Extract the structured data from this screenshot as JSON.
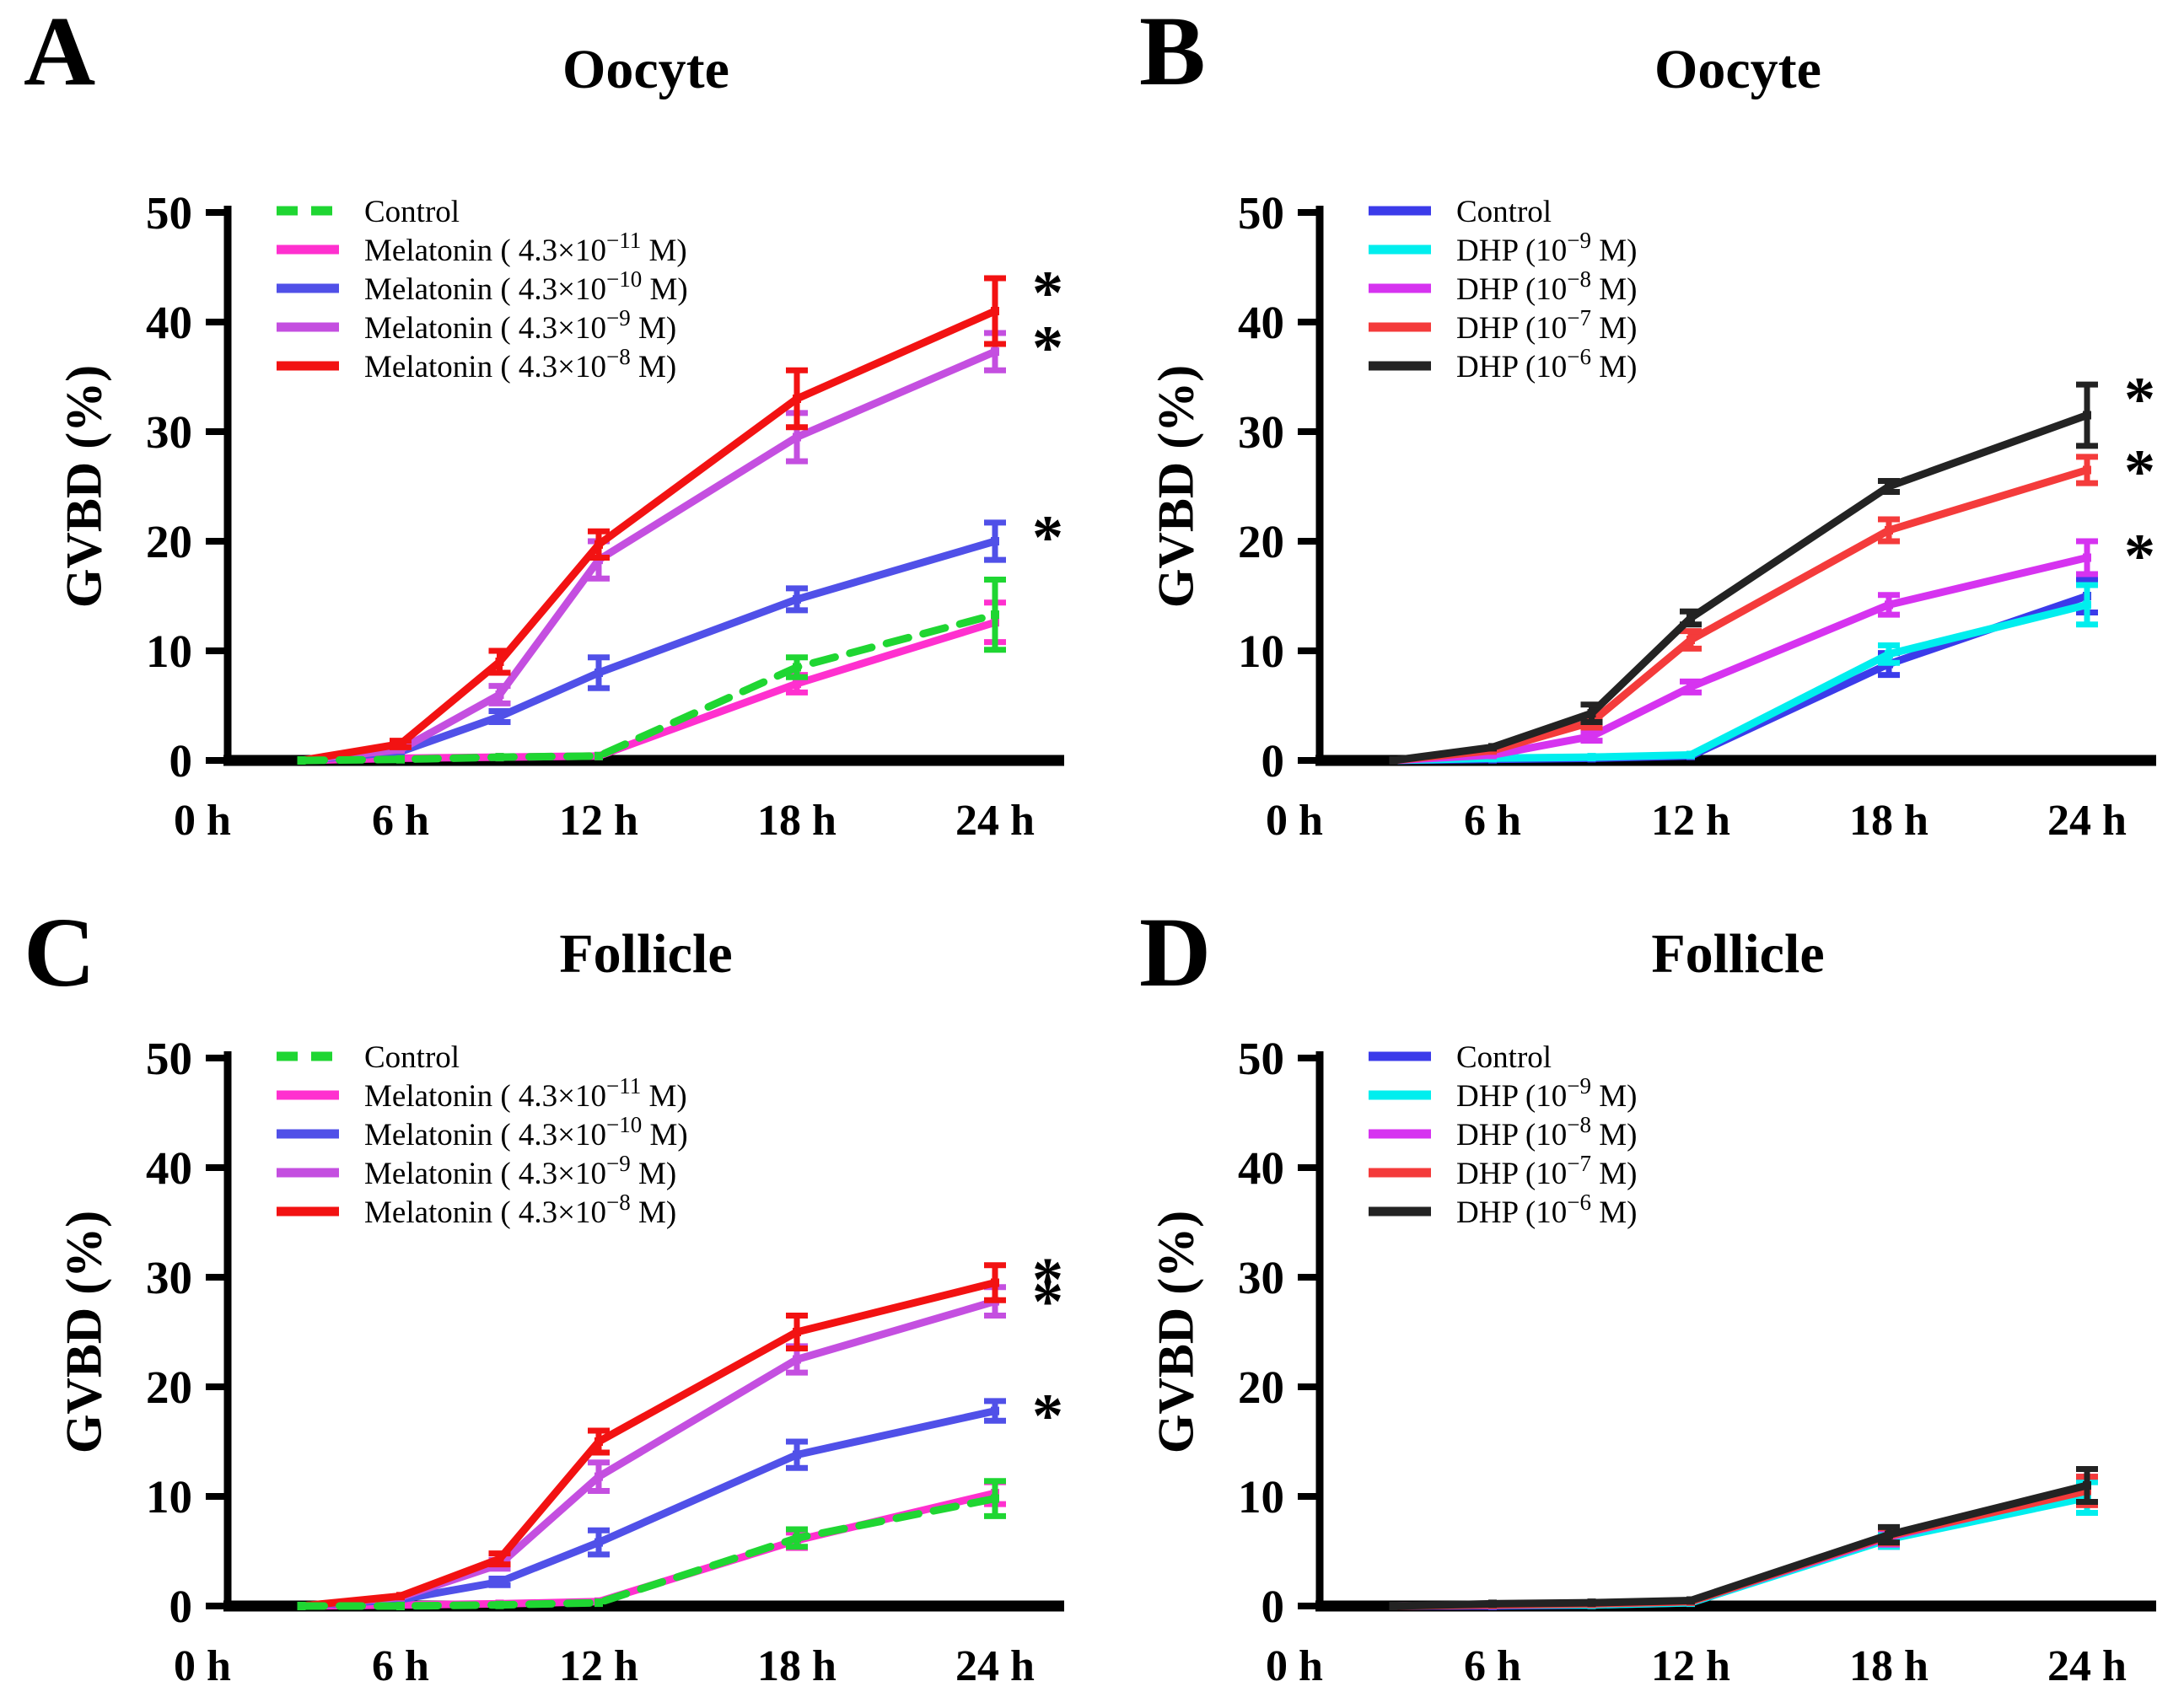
{
  "figure": {
    "background": "#ffffff",
    "axis_color": "#000000"
  },
  "chart_data": [
    {
      "letter": "A",
      "title": "Oocyte",
      "ylabel": "GVBD (%)",
      "type": "line",
      "ylim": [
        0,
        50
      ],
      "yticks": [
        0,
        10,
        20,
        30,
        40,
        50
      ],
      "xticks": [
        {
          "t": 0,
          "label": "0 h"
        },
        {
          "t": 6,
          "label": "6 h"
        },
        {
          "t": 12,
          "label": "12 h"
        },
        {
          "t": 18,
          "label": "18 h"
        },
        {
          "t": 24,
          "label": "24 h"
        }
      ],
      "x_hours": [
        3,
        6,
        9,
        12,
        18,
        24
      ],
      "legend_position": "top-left-inside",
      "series": [
        {
          "name": "Control",
          "label_pre": "Control",
          "label_sup": "",
          "label_post": "",
          "color": "#1fd632",
          "dashed": true,
          "significant": false,
          "values": [
            0,
            0.1,
            0.3,
            0.4,
            8.5,
            13.3
          ],
          "errors": [
            0,
            0,
            0,
            0,
            0.9,
            3.2
          ]
        },
        {
          "name": "Melatonin 4.3x10-11 M",
          "label_pre": "Melatonin ( 4.3×10",
          "label_sup": "−11",
          "label_post": " M)",
          "color": "#ff30cf",
          "dashed": false,
          "significant": false,
          "values": [
            0,
            0.2,
            0.3,
            0.4,
            7.0,
            12.6
          ],
          "errors": [
            0,
            0,
            0,
            0,
            0.8,
            1.8
          ]
        },
        {
          "name": "Melatonin 4.3x10-10 M",
          "label_pre": "Melatonin ( 4.3×10",
          "label_sup": "−10",
          "label_post": " M)",
          "color": "#5050e8",
          "dashed": false,
          "significant": true,
          "values": [
            0,
            0.8,
            4.0,
            8.0,
            14.7,
            20.0
          ],
          "errors": [
            0,
            0,
            0.5,
            1.4,
            1.0,
            1.7
          ]
        },
        {
          "name": "Melatonin 4.3x10-9 M",
          "label_pre": "Melatonin ( 4.3×10",
          "label_sup": "−9",
          "label_post": " M)",
          "color": "#c44fe0",
          "dashed": false,
          "significant": true,
          "values": [
            0,
            1.0,
            6.0,
            18.3,
            29.5,
            37.3
          ],
          "errors": [
            0,
            0,
            0.8,
            1.7,
            2.2,
            1.7
          ]
        },
        {
          "name": "Melatonin 4.3x10-8 M",
          "label_pre": "Melatonin ( 4.3×10",
          "label_sup": "−8",
          "label_post": " M)",
          "color": "#f21212",
          "dashed": false,
          "significant": true,
          "values": [
            0,
            1.5,
            9.0,
            19.7,
            33.0,
            41.0
          ],
          "errors": [
            0,
            0.3,
            1.0,
            1.2,
            2.6,
            3.0
          ]
        }
      ]
    },
    {
      "letter": "B",
      "title": "Oocyte",
      "ylabel": "GVBD (%)",
      "type": "line",
      "ylim": [
        0,
        50
      ],
      "yticks": [
        0,
        10,
        20,
        30,
        40,
        50
      ],
      "xticks": [
        {
          "t": 0,
          "label": "0 h"
        },
        {
          "t": 6,
          "label": "6 h"
        },
        {
          "t": 12,
          "label": "12 h"
        },
        {
          "t": 18,
          "label": "18 h"
        },
        {
          "t": 24,
          "label": "24 h"
        }
      ],
      "x_hours": [
        3,
        6,
        9,
        12,
        18,
        24
      ],
      "legend_position": "top-left-inside",
      "series": [
        {
          "name": "Control",
          "label_pre": "Control",
          "label_sup": "",
          "label_post": "",
          "color": "#3b3bea",
          "dashed": false,
          "significant": false,
          "values": [
            0,
            0.1,
            0.2,
            0.4,
            8.8,
            15.0
          ],
          "errors": [
            0,
            0,
            0,
            0,
            1.0,
            1.5
          ]
        },
        {
          "name": "DHP 10-9 M",
          "label_pre": "DHP (10",
          "label_sup": "−9",
          "label_post": " M)",
          "color": "#00eeee",
          "dashed": false,
          "significant": false,
          "values": [
            0,
            0.2,
            0.3,
            0.5,
            9.7,
            14.2
          ],
          "errors": [
            0,
            0,
            0,
            0,
            0.8,
            1.8
          ]
        },
        {
          "name": "DHP 10-8 M",
          "label_pre": "DHP (10",
          "label_sup": "−8",
          "label_post": " M)",
          "color": "#d633f0",
          "dashed": false,
          "significant": true,
          "values": [
            0,
            0.5,
            2.2,
            6.7,
            14.2,
            18.5
          ],
          "errors": [
            0,
            0,
            0.4,
            0.5,
            0.9,
            1.5
          ]
        },
        {
          "name": "DHP 10-7 M",
          "label_pre": "DHP (10",
          "label_sup": "−7",
          "label_post": " M)",
          "color": "#f43b3b",
          "dashed": false,
          "significant": true,
          "values": [
            0,
            0.9,
            3.5,
            11.0,
            21.0,
            26.5
          ],
          "errors": [
            0,
            0,
            0.5,
            0.8,
            1.0,
            1.2
          ]
        },
        {
          "name": "DHP 10-6 M",
          "label_pre": "DHP (10",
          "label_sup": "−6",
          "label_post": " M)",
          "color": "#232323",
          "dashed": false,
          "significant": true,
          "values": [
            0,
            1.2,
            4.3,
            13.0,
            25.0,
            31.5
          ],
          "errors": [
            0,
            0,
            0.8,
            0.6,
            0.5,
            2.8
          ]
        }
      ]
    },
    {
      "letter": "C",
      "title": "Follicle",
      "ylabel": "GVBD (%)",
      "type": "line",
      "ylim": [
        0,
        50
      ],
      "yticks": [
        0,
        10,
        20,
        30,
        40,
        50
      ],
      "xticks": [
        {
          "t": 0,
          "label": "0 h"
        },
        {
          "t": 6,
          "label": "6 h"
        },
        {
          "t": 12,
          "label": "12 h"
        },
        {
          "t": 18,
          "label": "18 h"
        },
        {
          "t": 24,
          "label": "24 h"
        }
      ],
      "x_hours": [
        3,
        6,
        9,
        12,
        18,
        24
      ],
      "legend_position": "top-left-inside",
      "series": [
        {
          "name": "Control",
          "label_pre": "Control",
          "label_sup": "",
          "label_post": "",
          "color": "#1fd632",
          "dashed": true,
          "significant": false,
          "values": [
            0,
            0,
            0.1,
            0.3,
            6.2,
            9.8
          ],
          "errors": [
            0,
            0,
            0,
            0,
            0.8,
            1.6
          ]
        },
        {
          "name": "Melatonin 4.3x10-11 M",
          "label_pre": "Melatonin ( 4.3×10",
          "label_sup": "−11",
          "label_post": " M)",
          "color": "#ff30cf",
          "dashed": false,
          "significant": false,
          "values": [
            0,
            0.1,
            0.2,
            0.4,
            6.0,
            10.3
          ],
          "errors": [
            0,
            0,
            0,
            0,
            0.7,
            1.0
          ]
        },
        {
          "name": "Melatonin 4.3x10-10 M",
          "label_pre": "Melatonin ( 4.3×10",
          "label_sup": "−10",
          "label_post": " M)",
          "color": "#5050e8",
          "dashed": false,
          "significant": true,
          "values": [
            0,
            0.6,
            2.2,
            5.8,
            13.8,
            17.8
          ],
          "errors": [
            0,
            0,
            0.3,
            1.1,
            1.2,
            0.9
          ]
        },
        {
          "name": "Melatonin 4.3x10-9 M",
          "label_pre": "Melatonin ( 4.3×10",
          "label_sup": "−9",
          "label_post": " M)",
          "color": "#c44fe0",
          "dashed": false,
          "significant": true,
          "values": [
            0,
            0.8,
            3.8,
            11.8,
            22.5,
            27.8
          ],
          "errors": [
            0,
            0,
            0.4,
            1.3,
            1.2,
            1.3
          ]
        },
        {
          "name": "Melatonin 4.3x10-8 M",
          "label_pre": "Melatonin ( 4.3×10",
          "label_sup": "−8",
          "label_post": " M)",
          "color": "#f21212",
          "dashed": false,
          "significant": true,
          "values": [
            0,
            0.9,
            4.3,
            15.0,
            25.0,
            29.5
          ],
          "errors": [
            0,
            0,
            0.5,
            1.0,
            1.5,
            1.6
          ]
        }
      ]
    },
    {
      "letter": "D",
      "title": "Follicle",
      "ylabel": "GVBD (%)",
      "type": "line",
      "ylim": [
        0,
        50
      ],
      "yticks": [
        0,
        10,
        20,
        30,
        40,
        50
      ],
      "xticks": [
        {
          "t": 0,
          "label": "0 h"
        },
        {
          "t": 6,
          "label": "6 h"
        },
        {
          "t": 12,
          "label": "12 h"
        },
        {
          "t": 18,
          "label": "18 h"
        },
        {
          "t": 24,
          "label": "24 h"
        }
      ],
      "x_hours": [
        3,
        6,
        9,
        12,
        18,
        24
      ],
      "legend_position": "top-left-inside",
      "series": [
        {
          "name": "Control",
          "label_pre": "Control",
          "label_sup": "",
          "label_post": "",
          "color": "#3b3bea",
          "dashed": false,
          "significant": false,
          "values": [
            0,
            0,
            0.1,
            0.3,
            6.2,
            10.1
          ],
          "errors": [
            0,
            0,
            0,
            0,
            0.8,
            1.6
          ]
        },
        {
          "name": "DHP 10-9 M",
          "label_pre": "DHP (10",
          "label_sup": "−9",
          "label_post": " M)",
          "color": "#00eeee",
          "dashed": false,
          "significant": false,
          "values": [
            0,
            0.1,
            0.1,
            0.3,
            6.1,
            9.9
          ],
          "errors": [
            0,
            0,
            0,
            0,
            0.7,
            1.4
          ]
        },
        {
          "name": "DHP 10-8 M",
          "label_pre": "DHP (10",
          "label_sup": "−8",
          "label_post": " M)",
          "color": "#d633f0",
          "dashed": false,
          "significant": false,
          "values": [
            0,
            0.1,
            0.2,
            0.4,
            6.3,
            10.6
          ],
          "errors": [
            0,
            0,
            0,
            0,
            0.7,
            1.2
          ]
        },
        {
          "name": "DHP 10-7 M",
          "label_pre": "DHP (10",
          "label_sup": "−7",
          "label_post": " M)",
          "color": "#f43b3b",
          "dashed": false,
          "significant": false,
          "values": [
            0,
            0.1,
            0.2,
            0.4,
            6.4,
            10.5
          ],
          "errors": [
            0,
            0,
            0,
            0,
            0.7,
            1.3
          ]
        },
        {
          "name": "DHP 10-6 M",
          "label_pre": "DHP (10",
          "label_sup": "−6",
          "label_post": " M)",
          "color": "#232323",
          "dashed": false,
          "significant": false,
          "values": [
            0,
            0.2,
            0.3,
            0.5,
            6.5,
            11.0
          ],
          "errors": [
            0,
            0,
            0,
            0,
            0.7,
            1.5
          ]
        }
      ]
    }
  ]
}
